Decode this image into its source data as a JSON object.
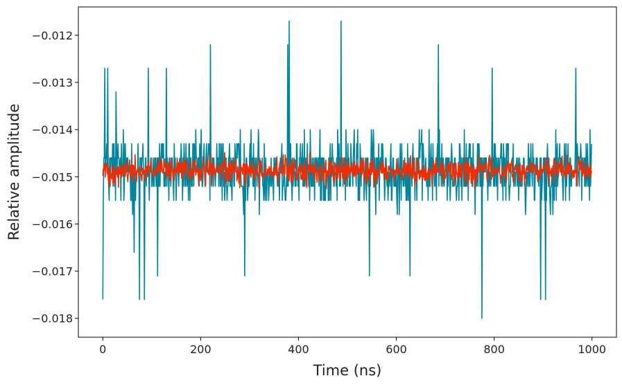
{
  "chart_data": {
    "type": "line",
    "title": "",
    "xlabel": "Time (ns)",
    "ylabel": "Relative amplitude",
    "xlim": [
      -50,
      1050
    ],
    "ylim": [
      -0.0184,
      -0.0114
    ],
    "x_ticks": [
      0,
      200,
      400,
      600,
      800,
      1000
    ],
    "x_tick_labels": [
      "0",
      "200",
      "400",
      "600",
      "800",
      "1000"
    ],
    "y_ticks": [
      -0.012,
      -0.013,
      -0.014,
      -0.015,
      -0.016,
      -0.017,
      -0.018
    ],
    "y_tick_labels": [
      "−0.012",
      "−0.013",
      "−0.014",
      "−0.015",
      "−0.016",
      "−0.017",
      "−0.018"
    ],
    "grid": false,
    "legend": "none",
    "series": [
      {
        "color": "#00849b",
        "x_range": [
          0,
          999
        ],
        "n_points": 1000,
        "center": -0.0149,
        "noise_range": [
          -0.016,
          -0.0137
        ],
        "quantization_step": 0.0003,
        "spikes": [
          {
            "x": 0,
            "y": -0.0176
          },
          {
            "x": 4,
            "y": -0.0127
          },
          {
            "x": 10,
            "y": -0.0127
          },
          {
            "x": 27,
            "y": -0.0132
          },
          {
            "x": 64,
            "y": -0.0166
          },
          {
            "x": 75,
            "y": -0.0176
          },
          {
            "x": 85,
            "y": -0.0176
          },
          {
            "x": 93,
            "y": -0.0127
          },
          {
            "x": 112,
            "y": -0.0171
          },
          {
            "x": 130,
            "y": -0.0127
          },
          {
            "x": 220,
            "y": -0.0122
          },
          {
            "x": 290,
            "y": -0.0171
          },
          {
            "x": 378,
            "y": -0.0122
          },
          {
            "x": 381,
            "y": -0.0117
          },
          {
            "x": 487,
            "y": -0.0117
          },
          {
            "x": 545,
            "y": -0.0171
          },
          {
            "x": 628,
            "y": -0.0171
          },
          {
            "x": 686,
            "y": -0.0122
          },
          {
            "x": 775,
            "y": -0.018
          },
          {
            "x": 796,
            "y": -0.0127
          },
          {
            "x": 895,
            "y": -0.0176
          },
          {
            "x": 905,
            "y": -0.0176
          },
          {
            "x": 967,
            "y": -0.0127
          }
        ]
      },
      {
        "color": "#f22c00",
        "x_range": [
          0,
          999
        ],
        "n_points": 1000,
        "center": -0.01488,
        "noise_range": [
          -0.0153,
          -0.01445
        ]
      }
    ]
  }
}
